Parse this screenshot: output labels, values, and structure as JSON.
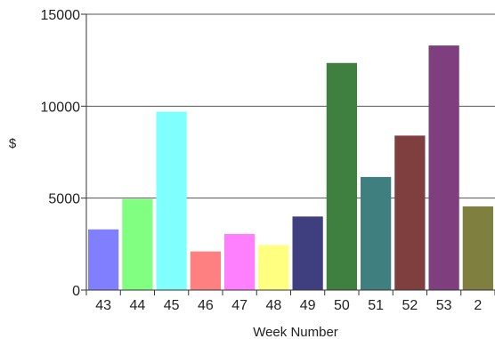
{
  "chart_data": {
    "type": "bar",
    "title": "",
    "xlabel": "Week Number",
    "ylabel": "$",
    "ylim": [
      0,
      15000
    ],
    "yticks": [
      0,
      5000,
      10000,
      15000
    ],
    "grid": "horizontal",
    "categories": [
      "43",
      "44",
      "45",
      "46",
      "47",
      "48",
      "49",
      "50",
      "51",
      "52",
      "53",
      "2"
    ],
    "values": [
      3300,
      4950,
      9700,
      2100,
      3050,
      2450,
      4000,
      12350,
      6150,
      8400,
      13300,
      4550
    ],
    "colors": [
      "#8080ff",
      "#80ff80",
      "#80ffff",
      "#ff8080",
      "#ff80ff",
      "#ffff80",
      "#3f3f7f",
      "#3f7f3f",
      "#3f7f7f",
      "#7f3f3f",
      "#7f3f7f",
      "#7f7f3f"
    ]
  }
}
